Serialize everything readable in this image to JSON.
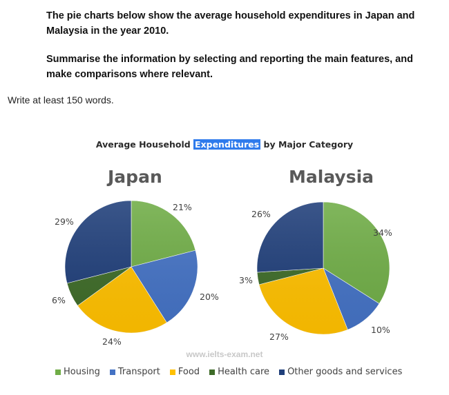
{
  "prompt": {
    "paragraph1": "The pie charts below show the average household expenditures in Japan and Malaysia in the year 2010.",
    "paragraph2": "Summarise the information by selecting and reporting the main features, and make comparisons where relevant.",
    "instruction": "Write at least 150 words."
  },
  "chart": {
    "title_before": "Average Household ",
    "title_highlight": "Expenditures",
    "title_after": " by Major Category",
    "watermark": "www.ielts-exam.net",
    "pies": [
      {
        "name": "Japan",
        "labels": [
          "21%",
          "20%",
          "24%",
          "6%",
          "29%"
        ]
      },
      {
        "name": "Malaysia",
        "labels": [
          "34%",
          "10%",
          "27%",
          "3%",
          "26%"
        ]
      }
    ],
    "legend": [
      {
        "label": "Housing",
        "color": "#70ad47"
      },
      {
        "label": "Transport",
        "color": "#4472c4"
      },
      {
        "label": "Food",
        "color": "#ffc000"
      },
      {
        "label": "Health care",
        "color": "#3e6b28"
      },
      {
        "label": "Other goods and services",
        "color": "#203f7a"
      }
    ]
  },
  "chart_data": [
    {
      "type": "pie",
      "title": "Average Household Expenditures by Major Category - Japan",
      "categories": [
        "Housing",
        "Transport",
        "Food",
        "Health care",
        "Other goods and services"
      ],
      "values": [
        21,
        20,
        24,
        6,
        29
      ],
      "unit": "%",
      "legend_position": "bottom"
    },
    {
      "type": "pie",
      "title": "Average Household Expenditures by Major Category - Malaysia",
      "categories": [
        "Housing",
        "Transport",
        "Food",
        "Health care",
        "Other goods and services"
      ],
      "values": [
        34,
        10,
        27,
        3,
        26
      ],
      "unit": "%",
      "legend_position": "bottom"
    }
  ]
}
